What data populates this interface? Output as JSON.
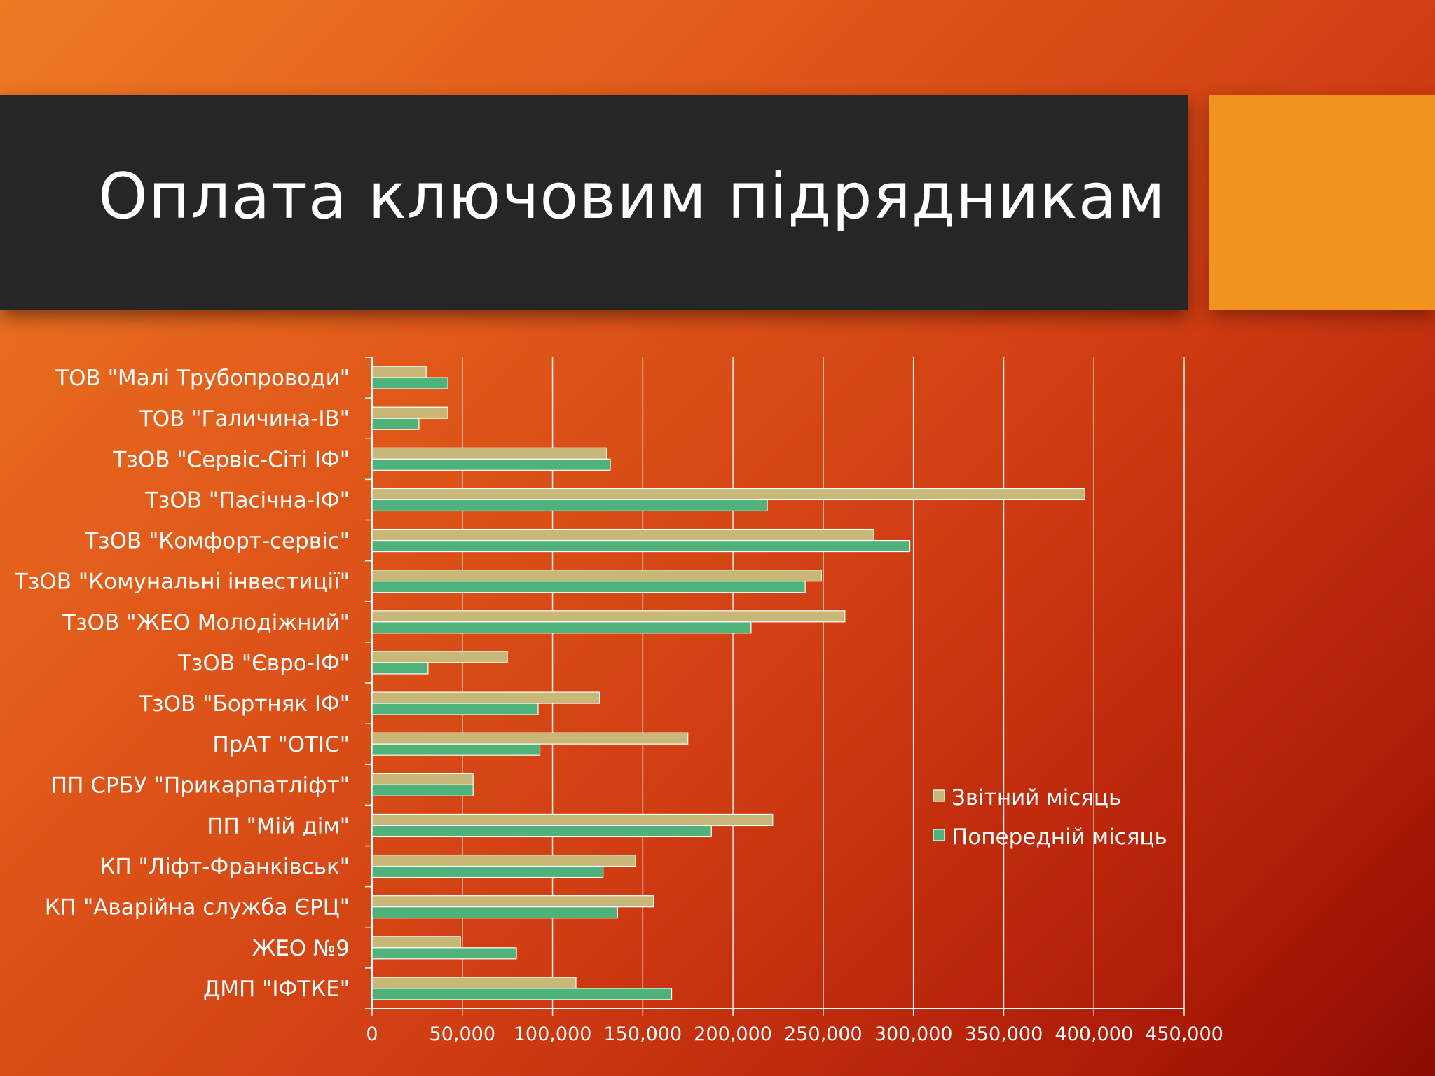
{
  "slide": {
    "title": "Оплата ключовим підрядникам"
  },
  "colors": {
    "title_band": "#262626",
    "accent": "#f0941e",
    "series_current": "#c8b878",
    "series_previous": "#4fb27a"
  },
  "chart_data": {
    "type": "bar",
    "orientation": "horizontal",
    "categories": [
      "ТОВ \"Малі Трубопроводи\"",
      "ТОВ \"Галичина-ІВ\"",
      "ТзОВ \"Сервіс-Сіті ІФ\"",
      "ТзОВ \"Пасічна-ІФ\"",
      "ТзОВ \"Комфорт-сервіс\"",
      "ТзОВ \"Комунальні інвестиції\"",
      "ТзОВ \"ЖЕО Молодіжний\"",
      "ТзОВ \"Євро-ІФ\"",
      "ТзОВ \"Бортняк ІФ\"",
      "ПрАТ \"ОТІС\"",
      "ПП СРБУ \"Прикарпатліфт\"",
      "ПП \"Мій дім\"",
      "КП \"Ліфт-Франківськ\"",
      "КП \"Аварійна служба ЄРЦ\"",
      "ЖЕО №9",
      "ДМП \"ІФТКЕ\""
    ],
    "series": [
      {
        "name": "Звітний місяць",
        "color": "#c8b878",
        "values": [
          30000,
          42000,
          130000,
          395000,
          278000,
          249000,
          262000,
          75000,
          126000,
          175000,
          56000,
          222000,
          146000,
          156000,
          49000,
          113000
        ]
      },
      {
        "name": "Попередній місяць",
        "color": "#4fb27a",
        "values": [
          42000,
          26000,
          132000,
          219000,
          298000,
          240000,
          210000,
          31000,
          92000,
          93000,
          56000,
          188000,
          128000,
          136000,
          80000,
          166000
        ]
      }
    ],
    "x_ticks": [
      "0",
      "50,000",
      "100,000",
      "150,000",
      "200,000",
      "250,000",
      "300,000",
      "350,000",
      "400,000",
      "450,000"
    ],
    "xlim": [
      0,
      450000
    ],
    "xlabel": "",
    "ylabel": "",
    "grid": "vertical",
    "legend": "right"
  }
}
